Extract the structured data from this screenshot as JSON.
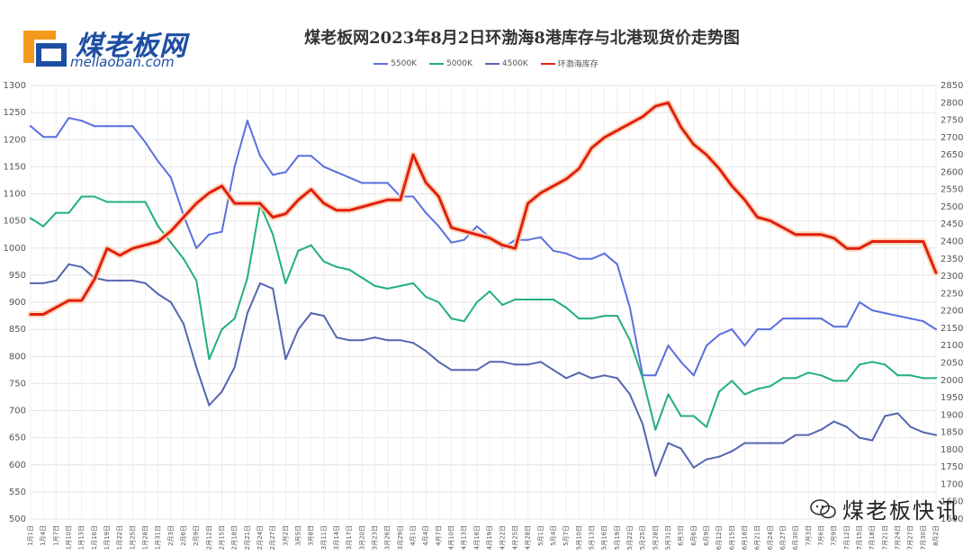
{
  "brand": {
    "name_cn": "煤老板网",
    "url": "mellaoban.com",
    "wechat": "煤老板快讯"
  },
  "chart_data": {
    "type": "line",
    "title": "煤老板网2023年8月2日环渤海8港库存与北港现货价走势图",
    "legend_position": "top-center",
    "left_axis": {
      "min": 500,
      "max": 1300,
      "step": 50
    },
    "right_axis": {
      "min": 1600,
      "max": 2850,
      "step": 50
    },
    "categories": [
      "1月1日",
      "1月4日",
      "1月7日",
      "1月10日",
      "1月13日",
      "1月16日",
      "1月19日",
      "1月22日",
      "1月25日",
      "1月28日",
      "1月31日",
      "2月3日",
      "2月6日",
      "2月9日",
      "2月12日",
      "2月15日",
      "2月18日",
      "2月21日",
      "2月24日",
      "2月27日",
      "3月2日",
      "3月5日",
      "3月8日",
      "3月11日",
      "3月14日",
      "3月17日",
      "3月20日",
      "3月23日",
      "3月26日",
      "3月29日",
      "4月1日",
      "4月4日",
      "4月7日",
      "4月10日",
      "4月13日",
      "4月16日",
      "4月19日",
      "4月22日",
      "4月25日",
      "4月28日",
      "5月1日",
      "5月4日",
      "5月7日",
      "5月10日",
      "5月13日",
      "5月16日",
      "5月19日",
      "5月22日",
      "5月25日",
      "5月28日",
      "5月31日",
      "6月3日",
      "6月6日",
      "6月9日",
      "6月12日",
      "6月15日",
      "6月18日",
      "6月21日",
      "6月24日",
      "6月27日",
      "6月30日",
      "7月3日",
      "7月6日",
      "7月9日",
      "7月12日",
      "7月15日",
      "7月18日",
      "7月21日",
      "7月24日",
      "7月27日",
      "7月30日",
      "8月2日"
    ],
    "series": [
      {
        "name": "5500K",
        "axis": "left",
        "color": "#5b6fe0",
        "values": [
          1225,
          1205,
          1205,
          1240,
          1235,
          1225,
          1225,
          1225,
          1225,
          1195,
          1160,
          1130,
          1060,
          1000,
          1025,
          1030,
          1150,
          1235,
          1170,
          1135,
          1140,
          1170,
          1170,
          1150,
          1140,
          1130,
          1120,
          1120,
          1120,
          1095,
          1095,
          1065,
          1040,
          1010,
          1015,
          1040,
          1020,
          1000,
          1015,
          1015,
          1020,
          995,
          990,
          980,
          980,
          990,
          970,
          890,
          765,
          765,
          820,
          790,
          765,
          820,
          840,
          850,
          820,
          850,
          850,
          870,
          870,
          870,
          870,
          855,
          855,
          900,
          885,
          880,
          875,
          870,
          865,
          850
        ]
      },
      {
        "name": "5000K",
        "axis": "left",
        "color": "#22b07a",
        "values": [
          1055,
          1040,
          1065,
          1065,
          1095,
          1095,
          1085,
          1085,
          1085,
          1085,
          1040,
          1010,
          980,
          940,
          795,
          850,
          870,
          945,
          1080,
          1025,
          935,
          995,
          1005,
          975,
          965,
          960,
          945,
          930,
          925,
          930,
          935,
          910,
          900,
          870,
          865,
          900,
          920,
          895,
          905,
          905,
          905,
          905,
          890,
          870,
          870,
          875,
          875,
          830,
          760,
          665,
          730,
          690,
          690,
          670,
          735,
          755,
          730,
          740,
          745,
          760,
          760,
          770,
          765,
          755,
          755,
          785,
          790,
          785,
          765,
          765,
          760,
          760
        ]
      },
      {
        "name": "4500K",
        "axis": "left",
        "color": "#5566b0",
        "values": [
          935,
          935,
          940,
          970,
          965,
          945,
          940,
          940,
          940,
          935,
          915,
          900,
          860,
          780,
          710,
          735,
          780,
          880,
          935,
          925,
          795,
          850,
          880,
          875,
          835,
          830,
          830,
          835,
          830,
          830,
          825,
          810,
          790,
          775,
          775,
          775,
          790,
          790,
          785,
          785,
          790,
          775,
          760,
          770,
          760,
          765,
          760,
          730,
          675,
          580,
          640,
          630,
          595,
          610,
          615,
          625,
          640,
          640,
          640,
          640,
          655,
          655,
          665,
          680,
          670,
          650,
          645,
          690,
          695,
          670,
          660,
          655
        ]
      },
      {
        "name": "环渤海库存",
        "axis": "right",
        "color": "#e02010",
        "values": [
          2190,
          2190,
          2210,
          2230,
          2230,
          2290,
          2380,
          2360,
          2380,
          2390,
          2400,
          2430,
          2470,
          2510,
          2540,
          2560,
          2510,
          2510,
          2510,
          2470,
          2480,
          2520,
          2550,
          2510,
          2490,
          2490,
          2500,
          2510,
          2520,
          2520,
          2650,
          2570,
          2530,
          2440,
          2430,
          2420,
          2410,
          2390,
          2380,
          2510,
          2540,
          2560,
          2580,
          2610,
          2670,
          2700,
          2720,
          2740,
          2760,
          2790,
          2800,
          2730,
          2680,
          2650,
          2610,
          2560,
          2520,
          2470,
          2460,
          2440,
          2420,
          2420,
          2420,
          2410,
          2380,
          2380,
          2400,
          2400,
          2400,
          2400,
          2400,
          2310
        ]
      }
    ]
  }
}
